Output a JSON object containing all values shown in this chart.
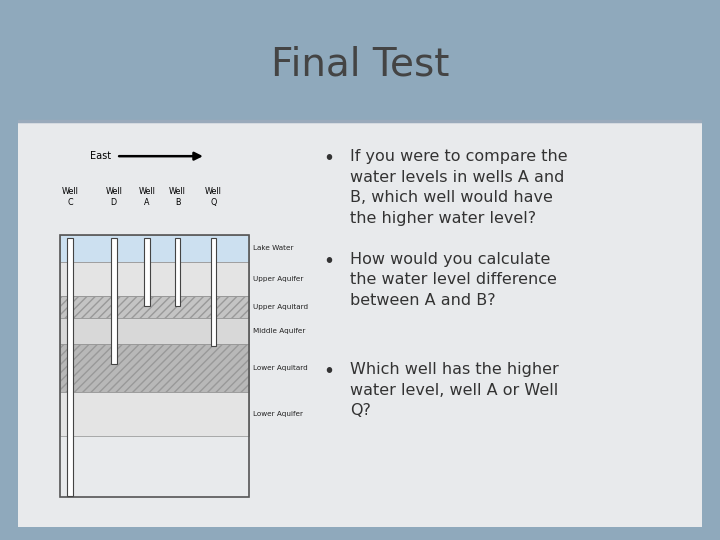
{
  "title": "Final Test",
  "bg_outer": "#8fa9bc",
  "bg_slide": "#eaeaea",
  "bg_content": "#e8eaec",
  "title_color": "#444444",
  "title_fontsize": 28,
  "bullet_points": [
    "If you were to compare the\nwater levels in wells A and\nB, which well would have\nthe higher water level?",
    "How would you calculate\nthe water level difference\nbetween A and B?",
    "Which well has the higher\nwater level, well A or Well\nQ?"
  ],
  "bullet_fontsize": 11.5,
  "bullet_color": "#333333",
  "layer_colors": [
    "#c8d8e8",
    "#e0e0e0",
    "#c0c0c0",
    "#d8d8d8",
    "#b8b8b8",
    "#e0e0e0"
  ],
  "layer_labels": [
    "Lake Water",
    "Upper Aquifer",
    "Upper Aquitard",
    "Middle Aquifer",
    "Lower Aquitard",
    "Lower Aquifer"
  ],
  "well_labels": [
    "Well\nC",
    "Well\nD",
    "Well\nA",
    "Well\nB",
    "Well\nQ"
  ],
  "east_label": "East"
}
